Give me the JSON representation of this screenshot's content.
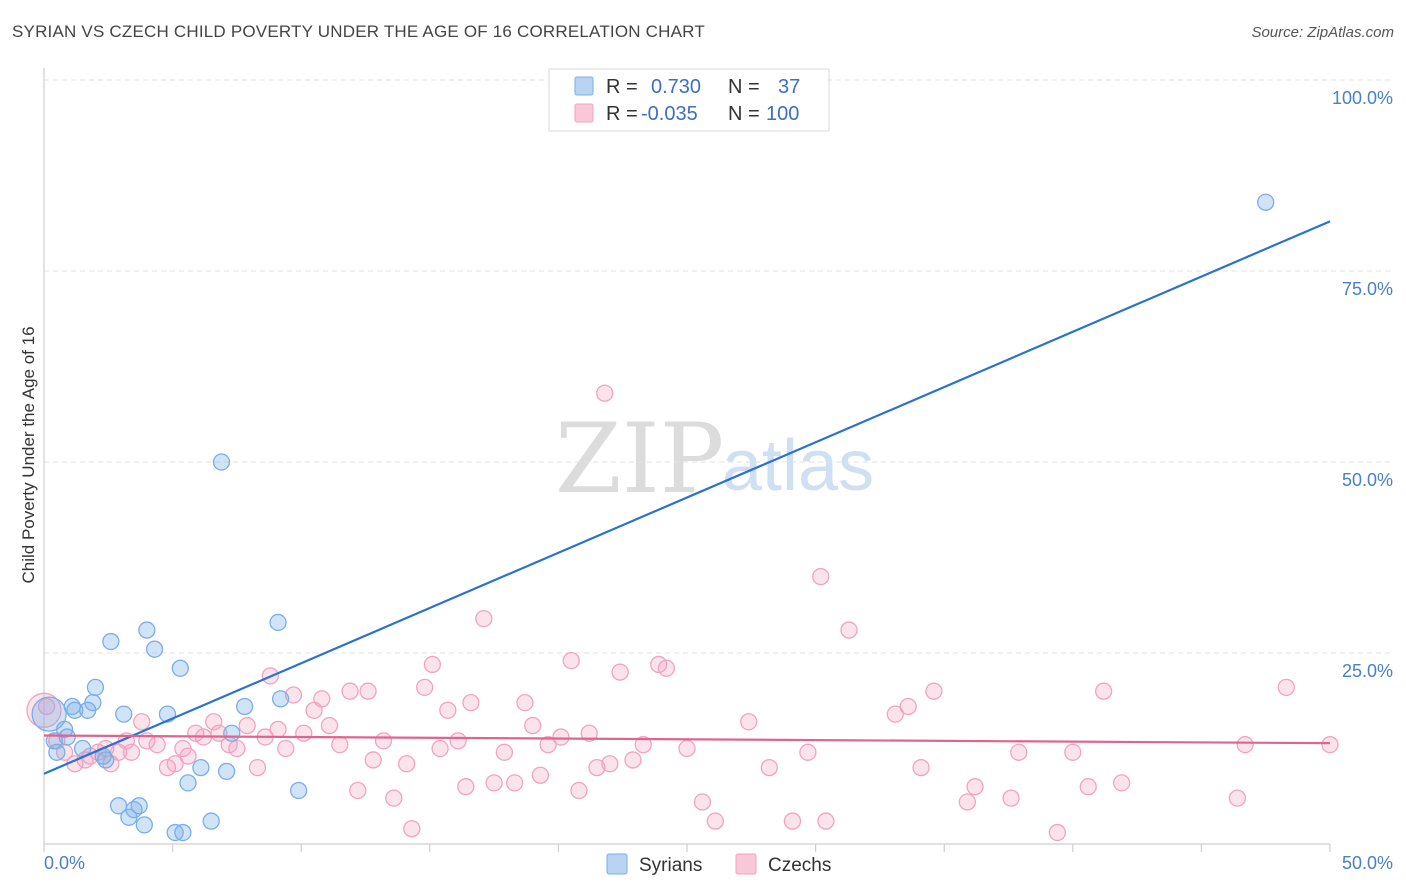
{
  "chart_data": {
    "type": "scatter",
    "title": "SYRIAN VS CZECH CHILD POVERTY UNDER THE AGE OF 16 CORRELATION CHART",
    "source": "Source: ZipAtlas.com",
    "ylabel": "Child Poverty Under the Age of 16",
    "xlim": [
      0,
      50
    ],
    "ylim": [
      0,
      100
    ],
    "x_tick_labels": [
      "0.0%",
      "50.0%"
    ],
    "y_tick_labels": [
      "100.0%",
      "75.0%",
      "50.0%",
      "25.0%"
    ],
    "y_ticks": [
      100,
      75,
      50,
      25
    ],
    "legend": {
      "rows": [
        {
          "r_label": "R =",
          "r_value": "0.730",
          "n_label": "N =",
          "n_value": "37"
        },
        {
          "r_label": "R =",
          "r_value": "-0.035",
          "n_label": "N =",
          "n_value": "100"
        }
      ]
    },
    "watermark": {
      "zip": "ZIP",
      "atlas": "atlas"
    },
    "series": [
      {
        "name": "Syrians",
        "color": "#7aaee8",
        "line_color": "#2a72d0",
        "trend": {
          "x0": 0,
          "y0": 9.2,
          "x1": 50,
          "y1": 81.5
        },
        "points": [
          [
            0.2,
            17.0
          ],
          [
            0.4,
            13.5
          ],
          [
            0.5,
            12.0
          ],
          [
            0.8,
            15.0
          ],
          [
            0.9,
            14.0
          ],
          [
            1.1,
            18.0
          ],
          [
            1.2,
            17.5
          ],
          [
            1.5,
            12.5
          ],
          [
            1.7,
            17.5
          ],
          [
            1.9,
            18.5
          ],
          [
            2.0,
            20.5
          ],
          [
            2.3,
            11.5
          ],
          [
            2.4,
            11.0
          ],
          [
            2.6,
            26.5
          ],
          [
            2.9,
            5.0
          ],
          [
            3.1,
            17.0
          ],
          [
            3.3,
            3.5
          ],
          [
            3.5,
            4.5
          ],
          [
            3.7,
            5.0
          ],
          [
            3.9,
            2.5
          ],
          [
            4.0,
            28.0
          ],
          [
            4.3,
            25.5
          ],
          [
            4.8,
            17.0
          ],
          [
            5.1,
            1.5
          ],
          [
            5.3,
            23.0
          ],
          [
            5.4,
            1.5
          ],
          [
            5.6,
            8.0
          ],
          [
            6.1,
            10.0
          ],
          [
            6.5,
            3.0
          ],
          [
            6.9,
            50.0
          ],
          [
            7.1,
            9.5
          ],
          [
            7.3,
            14.5
          ],
          [
            7.8,
            18.0
          ],
          [
            9.1,
            29.0
          ],
          [
            9.2,
            19.0
          ],
          [
            9.9,
            7.0
          ],
          [
            47.5,
            84.0
          ]
        ]
      },
      {
        "name": "Czechs",
        "color": "#f2a3bf",
        "line_color": "#e0648e",
        "trend": {
          "x0": 0,
          "y0": 14.2,
          "x1": 50,
          "y1": 13.2
        },
        "points": [
          [
            0.1,
            18.0
          ],
          [
            0.5,
            13.5
          ],
          [
            0.8,
            12.0
          ],
          [
            1.2,
            10.5
          ],
          [
            1.6,
            11.0
          ],
          [
            1.8,
            11.5
          ],
          [
            2.1,
            12.0
          ],
          [
            2.4,
            12.5
          ],
          [
            2.6,
            10.5
          ],
          [
            2.9,
            12.0
          ],
          [
            3.2,
            13.5
          ],
          [
            3.4,
            12.0
          ],
          [
            3.8,
            16.0
          ],
          [
            4.0,
            13.5
          ],
          [
            4.4,
            13.0
          ],
          [
            4.8,
            10.0
          ],
          [
            5.1,
            10.5
          ],
          [
            5.4,
            12.5
          ],
          [
            5.6,
            11.5
          ],
          [
            5.9,
            14.5
          ],
          [
            6.2,
            14.0
          ],
          [
            6.6,
            16.0
          ],
          [
            6.8,
            14.5
          ],
          [
            7.2,
            13.0
          ],
          [
            7.5,
            12.5
          ],
          [
            7.9,
            15.5
          ],
          [
            8.3,
            10.0
          ],
          [
            8.6,
            14.0
          ],
          [
            8.8,
            22.0
          ],
          [
            9.1,
            15.0
          ],
          [
            9.4,
            12.5
          ],
          [
            9.7,
            19.5
          ],
          [
            10.1,
            14.5
          ],
          [
            10.5,
            17.5
          ],
          [
            10.8,
            19.0
          ],
          [
            11.1,
            15.5
          ],
          [
            11.5,
            13.0
          ],
          [
            11.9,
            20.0
          ],
          [
            12.2,
            7.0
          ],
          [
            12.6,
            20.0
          ],
          [
            12.8,
            11.0
          ],
          [
            13.2,
            13.5
          ],
          [
            13.6,
            6.0
          ],
          [
            14.1,
            10.5
          ],
          [
            14.3,
            2.0
          ],
          [
            14.8,
            20.5
          ],
          [
            15.1,
            23.5
          ],
          [
            15.4,
            12.5
          ],
          [
            15.7,
            17.5
          ],
          [
            16.1,
            13.5
          ],
          [
            16.4,
            7.5
          ],
          [
            16.6,
            18.5
          ],
          [
            17.1,
            29.5
          ],
          [
            17.5,
            8.0
          ],
          [
            17.9,
            12.0
          ],
          [
            18.3,
            8.0
          ],
          [
            18.7,
            18.5
          ],
          [
            19.0,
            15.5
          ],
          [
            19.3,
            9.0
          ],
          [
            19.6,
            13.0
          ],
          [
            20.1,
            14.0
          ],
          [
            20.5,
            24.0
          ],
          [
            20.8,
            7.0
          ],
          [
            21.2,
            14.5
          ],
          [
            21.5,
            10.0
          ],
          [
            21.8,
            59.0
          ],
          [
            22.0,
            10.5
          ],
          [
            22.4,
            22.5
          ],
          [
            22.9,
            11.0
          ],
          [
            23.3,
            13.0
          ],
          [
            23.9,
            23.5
          ],
          [
            24.2,
            23.0
          ],
          [
            25.0,
            12.5
          ],
          [
            25.6,
            5.5
          ],
          [
            26.1,
            3.0
          ],
          [
            27.4,
            16.0
          ],
          [
            28.2,
            10.0
          ],
          [
            29.1,
            3.0
          ],
          [
            29.7,
            12.0
          ],
          [
            30.2,
            35.0
          ],
          [
            30.4,
            3.0
          ],
          [
            31.3,
            28.0
          ],
          [
            33.1,
            17.0
          ],
          [
            33.6,
            18.0
          ],
          [
            34.1,
            10.0
          ],
          [
            34.6,
            20.0
          ],
          [
            35.9,
            5.5
          ],
          [
            36.2,
            7.5
          ],
          [
            37.6,
            6.0
          ],
          [
            37.9,
            12.0
          ],
          [
            39.4,
            1.5
          ],
          [
            40.0,
            12.0
          ],
          [
            40.6,
            7.5
          ],
          [
            41.2,
            20.0
          ],
          [
            41.9,
            8.0
          ],
          [
            46.4,
            6.0
          ],
          [
            46.7,
            13.0
          ],
          [
            48.3,
            20.5
          ],
          [
            50.0,
            13.0
          ],
          [
            0.0,
            17.5
          ]
        ]
      }
    ]
  }
}
